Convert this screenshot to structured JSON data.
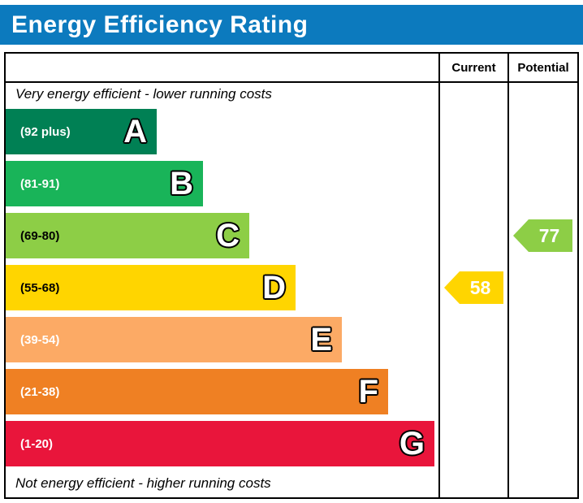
{
  "title": "Energy Efficiency Rating",
  "colors": {
    "title_bar_bg": "#0c7abe",
    "title_text": "#ffffff",
    "chart_border": "#000000"
  },
  "columns": {
    "current": "Current",
    "potential": "Potential"
  },
  "notes": {
    "top": "Very energy efficient - lower running costs",
    "bottom": "Not energy efficient - higher running costs"
  },
  "chart_data": {
    "type": "bar",
    "title": "Energy Efficiency Rating",
    "bands": [
      {
        "letter": "A",
        "range": "(92 plus)",
        "min": 92,
        "max": 100,
        "color": "#008054",
        "label_color": "#ffffff"
      },
      {
        "letter": "B",
        "range": "(81-91)",
        "min": 81,
        "max": 91,
        "color": "#19b459",
        "label_color": "#ffffff"
      },
      {
        "letter": "C",
        "range": "(69-80)",
        "min": 69,
        "max": 80,
        "color": "#8dce46",
        "label_color": "#000000"
      },
      {
        "letter": "D",
        "range": "(55-68)",
        "min": 55,
        "max": 68,
        "color": "#ffd500",
        "label_color": "#000000"
      },
      {
        "letter": "E",
        "range": "(39-54)",
        "min": 39,
        "max": 54,
        "color": "#fcaa65",
        "label_color": "#ffffff"
      },
      {
        "letter": "F",
        "range": "(21-38)",
        "min": 21,
        "max": 38,
        "color": "#ef8023",
        "label_color": "#ffffff"
      },
      {
        "letter": "G",
        "range": "(1-20)",
        "min": 1,
        "max": 20,
        "color": "#e9153b",
        "label_color": "#ffffff"
      }
    ],
    "ratings": {
      "current": {
        "value": 58,
        "band": "D",
        "color": "#ffd500"
      },
      "potential": {
        "value": 77,
        "band": "C",
        "color": "#8dce46"
      }
    }
  }
}
